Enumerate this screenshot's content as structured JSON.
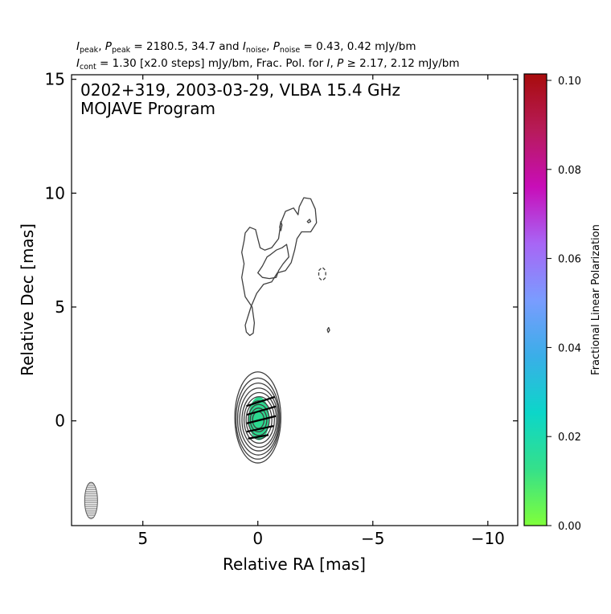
{
  "header": {
    "line1": {
      "a": "I",
      "a_sub": "peak",
      "b": ", ",
      "c": "P",
      "c_sub": "peak",
      "d": " = 2180.5, 34.7 and ",
      "e": "I",
      "e_sub": "noise",
      "f": ", ",
      "g": "P",
      "g_sub": "noise",
      "h": " = 0.43, 0.42 mJy/bm"
    },
    "line2": {
      "a": "I",
      "a_sub": "cont",
      "b": " = 1.30 [x2.0 steps] mJy/bm, Frac. Pol. for ",
      "c": "I",
      "d": ", ",
      "e": "P",
      "f": " ≥ 2.17, 2.12 mJy/bm"
    }
  },
  "chart_data": {
    "type": "contour",
    "title_line1": "0202+319, 2003-03-29, VLBA 15.4 GHz",
    "title_line2": "MOJAVE Program",
    "xlabel": "Relative RA [mas]",
    "ylabel": "Relative Dec [mas]",
    "xlim": [
      8.1,
      -11.3
    ],
    "ylim": [
      -4.6,
      15.2
    ],
    "xticks": [
      5,
      0,
      -5,
      -10
    ],
    "xtick_labels": [
      "5",
      "0",
      "−5",
      "−10"
    ],
    "yticks": [
      0,
      5,
      10,
      15
    ],
    "ytick_labels": [
      "0",
      "5",
      "10",
      "15"
    ],
    "colorbar": {
      "label": "Fractional Linear Polarization",
      "range": [
        0.0,
        0.1
      ],
      "ticks": [
        0.0,
        0.02,
        0.04,
        0.06,
        0.08,
        0.1
      ],
      "tick_labels": [
        "0.00",
        "0.02",
        "0.04",
        "0.06",
        "0.08",
        "0.10"
      ],
      "colors": [
        "#80ff3a",
        "#35e08a",
        "#0cd6c9",
        "#3aaee8",
        "#7a9cff",
        "#a865f5",
        "#c80db8",
        "#b71b5a",
        "#a80c0c"
      ]
    },
    "contour_color": "#404040",
    "core": {
      "x": 0.0,
      "y": 0.1,
      "frac_pol": 0.013,
      "fill_color": "#2cd98f"
    },
    "core_contours": [
      {
        "cx": 0.0,
        "cy": 0.15,
        "rx": 1.0,
        "ry": 2.0
      },
      {
        "cx": 0.0,
        "cy": 0.1,
        "rx": 0.95,
        "ry": 1.78
      },
      {
        "cx": -0.02,
        "cy": 0.08,
        "rx": 0.9,
        "ry": 1.58
      },
      {
        "cx": -0.04,
        "cy": 0.06,
        "rx": 0.83,
        "ry": 1.38
      },
      {
        "cx": -0.06,
        "cy": 0.04,
        "rx": 0.75,
        "ry": 1.2
      },
      {
        "cx": -0.06,
        "cy": 0.04,
        "rx": 0.66,
        "ry": 1.02
      },
      {
        "cx": -0.05,
        "cy": 0.04,
        "rx": 0.56,
        "ry": 0.84
      },
      {
        "cx": -0.04,
        "cy": 0.04,
        "rx": 0.46,
        "ry": 0.68
      },
      {
        "cx": -0.03,
        "cy": 0.04,
        "rx": 0.36,
        "ry": 0.52
      },
      {
        "cx": -0.02,
        "cy": 0.04,
        "rx": 0.25,
        "ry": 0.37
      }
    ],
    "pol_region": {
      "cx": -0.05,
      "cy": 0.1,
      "rx": 0.45,
      "ry": 0.95
    },
    "evpa_vectors": [
      {
        "x": -0.12,
        "y": 0.85,
        "len": 1.3,
        "angle": 18
      },
      {
        "x": -0.15,
        "y": 0.45,
        "len": 1.3,
        "angle": 16
      },
      {
        "x": -0.15,
        "y": 0.05,
        "len": 1.3,
        "angle": 14
      },
      {
        "x": -0.1,
        "y": -0.35,
        "len": 1.2,
        "angle": 12
      },
      {
        "x": -0.02,
        "y": -0.7,
        "len": 0.9,
        "angle": 10
      }
    ],
    "jet_contours": [
      {
        "dashed": false,
        "points": [
          [
            0.55,
            4.2
          ],
          [
            0.5,
            3.9
          ],
          [
            0.35,
            3.75
          ],
          [
            0.2,
            3.85
          ],
          [
            0.15,
            4.3
          ],
          [
            0.25,
            5.0
          ],
          [
            0.55,
            5.45
          ],
          [
            0.7,
            6.3
          ],
          [
            0.6,
            6.9
          ],
          [
            0.7,
            7.4
          ],
          [
            0.6,
            7.9
          ],
          [
            0.55,
            8.25
          ],
          [
            0.35,
            8.5
          ],
          [
            0.1,
            8.4
          ],
          [
            0.0,
            8.0
          ],
          [
            -0.1,
            7.6
          ],
          [
            -0.3,
            7.5
          ],
          [
            -0.6,
            7.6
          ],
          [
            -0.9,
            8.0
          ],
          [
            -1.0,
            8.7
          ],
          [
            -1.2,
            9.2
          ],
          [
            -1.55,
            9.35
          ],
          [
            -1.75,
            9.05
          ],
          [
            -1.8,
            9.4
          ],
          [
            -2.0,
            9.8
          ],
          [
            -2.3,
            9.75
          ],
          [
            -2.5,
            9.3
          ],
          [
            -2.55,
            8.7
          ],
          [
            -2.3,
            8.3
          ],
          [
            -1.9,
            8.3
          ],
          [
            -1.7,
            8.0
          ],
          [
            -1.6,
            7.5
          ],
          [
            -1.45,
            6.95
          ],
          [
            -1.2,
            6.6
          ],
          [
            -0.85,
            6.5
          ],
          [
            -0.6,
            6.1
          ],
          [
            -0.25,
            6.0
          ],
          [
            0.05,
            5.6
          ],
          [
            0.3,
            5.0
          ],
          [
            0.55,
            4.2
          ]
        ]
      },
      {
        "dashed": false,
        "points": [
          [
            0.0,
            6.5
          ],
          [
            -0.2,
            6.8
          ],
          [
            -0.4,
            7.2
          ],
          [
            -0.55,
            7.3
          ],
          [
            -0.8,
            7.5
          ],
          [
            -1.05,
            7.6
          ],
          [
            -1.25,
            7.75
          ],
          [
            -1.3,
            7.5
          ],
          [
            -1.35,
            7.2
          ],
          [
            -1.1,
            6.9
          ],
          [
            -0.9,
            6.6
          ],
          [
            -0.8,
            6.3
          ],
          [
            -0.5,
            6.25
          ],
          [
            -0.2,
            6.3
          ],
          [
            0.0,
            6.5
          ]
        ]
      },
      {
        "dashed": false,
        "points": [
          [
            -0.95,
            8.5
          ],
          [
            -1.0,
            8.75
          ],
          [
            -1.05,
            8.6
          ],
          [
            -1.0,
            8.35
          ],
          [
            -0.95,
            8.5
          ]
        ]
      },
      {
        "dashed": false,
        "points": [
          [
            -2.15,
            8.75
          ],
          [
            -2.25,
            8.85
          ],
          [
            -2.3,
            8.75
          ],
          [
            -2.2,
            8.7
          ],
          [
            -2.15,
            8.75
          ]
        ]
      },
      {
        "dashed": true,
        "points": [
          [
            -2.65,
            6.6
          ],
          [
            -2.8,
            6.75
          ],
          [
            -2.95,
            6.6
          ],
          [
            -2.95,
            6.3
          ],
          [
            -2.8,
            6.15
          ],
          [
            -2.65,
            6.3
          ],
          [
            -2.65,
            6.6
          ]
        ]
      },
      {
        "dashed": false,
        "points": [
          [
            -3.02,
            4.0
          ],
          [
            -3.08,
            4.1
          ],
          [
            -3.12,
            3.98
          ],
          [
            -3.06,
            3.88
          ],
          [
            -3.02,
            4.0
          ]
        ]
      }
    ],
    "beam": {
      "x": 7.25,
      "y": -3.5,
      "major": 1.0,
      "minor": 0.56,
      "pa_deg": 0
    }
  }
}
